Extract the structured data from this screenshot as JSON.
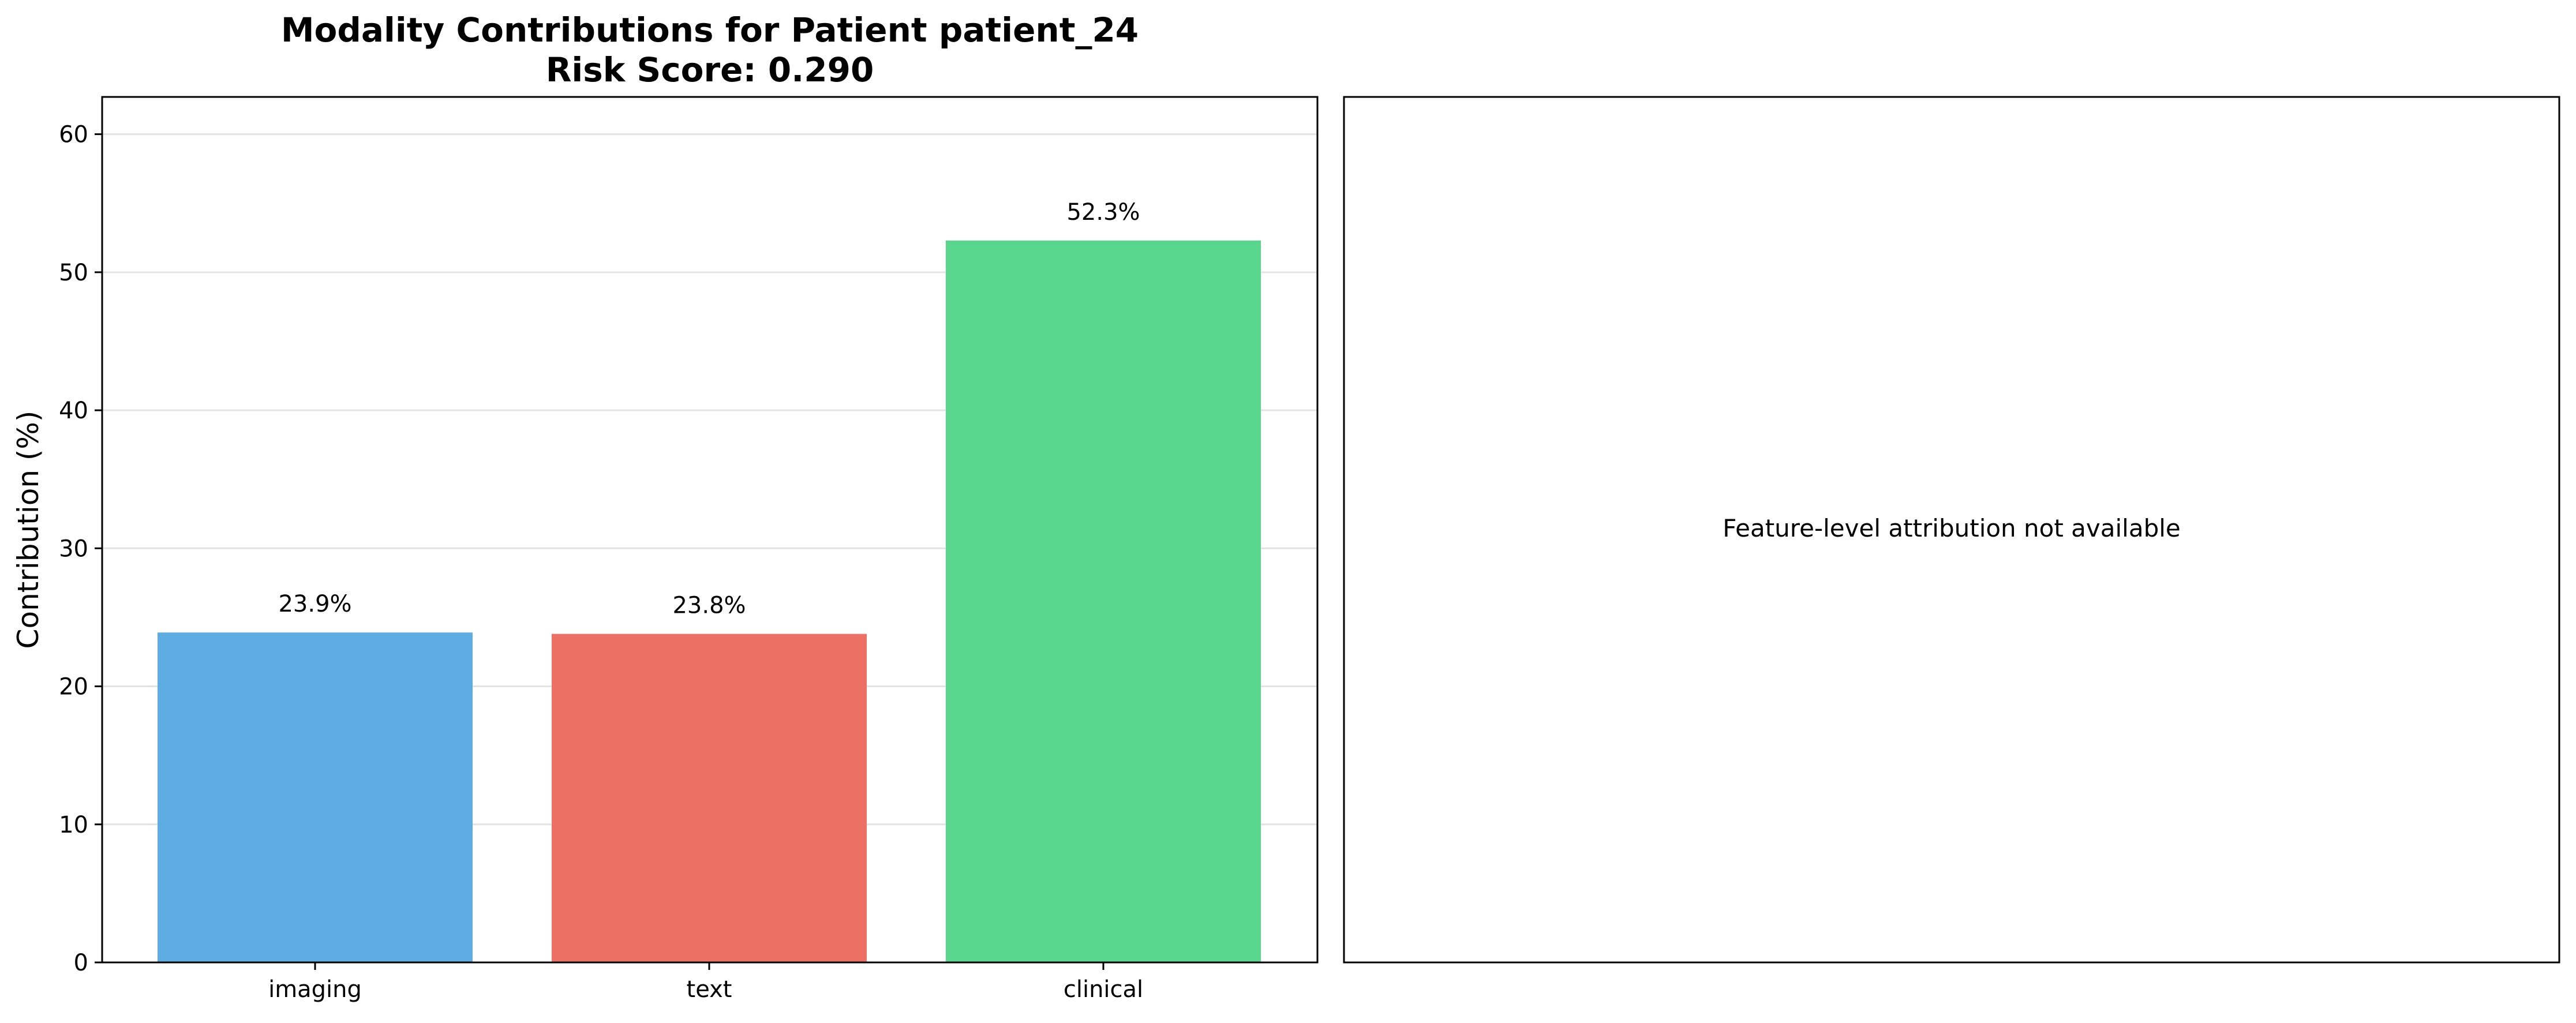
{
  "chart_data": [
    {
      "type": "bar",
      "title": "Modality Contributions for Patient patient_24",
      "subtitle": "Risk Score: 0.290",
      "xlabel": "",
      "ylabel": "Contribution (%)",
      "categories": [
        "imaging",
        "text",
        "clinical"
      ],
      "values": [
        23.9,
        23.8,
        52.3
      ],
      "value_labels": [
        "23.9%",
        "23.8%",
        "52.3%"
      ],
      "colors": [
        "#5dade2",
        "#ec7063",
        "#58d68d"
      ],
      "ylim": [
        0,
        62.7
      ],
      "yticks": [
        0,
        10,
        20,
        30,
        40,
        50,
        60
      ],
      "grid": true
    },
    {
      "type": "other",
      "message": "Feature-level attribution not available"
    }
  ]
}
